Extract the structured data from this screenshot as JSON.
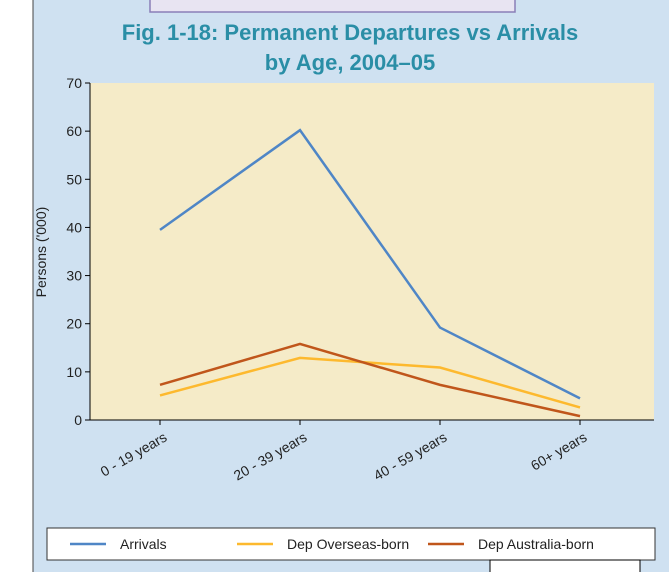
{
  "chart_data": {
    "type": "line",
    "title": "Fig. 1-18: Permanent Departures vs Arrivals",
    "subtitle": "by Age, 2004–05",
    "ylabel": "Persons ('000)",
    "categories": [
      "0 - 19 years",
      "20 - 39 years",
      "40 - 59 years",
      "60+ years"
    ],
    "series": [
      {
        "name": "Arrivals",
        "color": "#4f86c6",
        "values": [
          39.5,
          60.2,
          19.2,
          4.5
        ]
      },
      {
        "name": "Dep Overseas-born",
        "color": "#fdb92e",
        "values": [
          5.1,
          12.9,
          10.9,
          2.6
        ]
      },
      {
        "name": "Dep Australia-born",
        "color": "#c0561b",
        "values": [
          7.3,
          15.8,
          7.3,
          0.8
        ]
      }
    ],
    "ylim": [
      0,
      70
    ],
    "yticks": [
      0,
      10,
      20,
      30,
      40,
      50,
      60,
      70
    ],
    "legend": "bottom"
  }
}
